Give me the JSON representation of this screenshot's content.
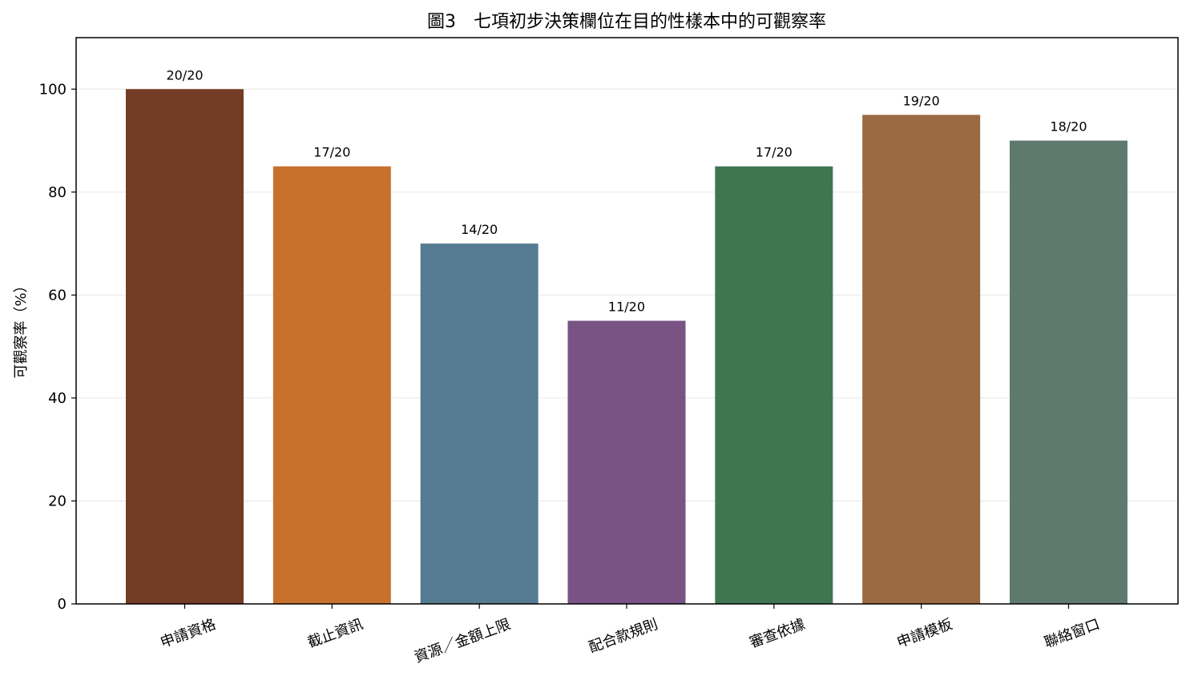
{
  "chart_data": {
    "type": "bar",
    "title": "圖3　七項初步決策欄位在目的性樣本中的可觀察率",
    "xlabel": "",
    "ylabel": "可觀察率（%）",
    "ylim": [
      0,
      110
    ],
    "yticks": [
      0,
      20,
      40,
      60,
      80,
      100
    ],
    "grid": true,
    "categories": [
      "申請資格",
      "截止資訊",
      "資源／金額上限",
      "配合款規則",
      "審查依據",
      "申請模板",
      "聯絡窗口"
    ],
    "values": [
      100,
      85,
      70,
      55,
      85,
      95,
      90
    ],
    "data_labels": [
      "20/20",
      "17/20",
      "14/20",
      "11/20",
      "17/20",
      "19/20",
      "18/20"
    ],
    "colors": [
      "#743c24",
      "#c8712d",
      "#557b92",
      "#785384",
      "#3f7651",
      "#9a6b42",
      "#5e7a6f"
    ]
  }
}
